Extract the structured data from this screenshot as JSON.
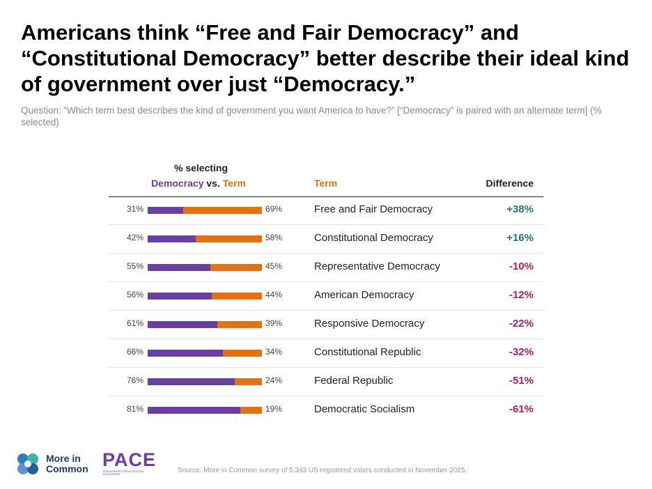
{
  "title": "Americans think “Free and Fair Democracy” and “Constitutional Democracy” better describe their ideal kind of government over just “Democracy.”",
  "subtitle": "Question: “Which term best describes the kind of government you want America to have?” [“Democracy” is paired with an alternate term] (% selected)",
  "header": {
    "selecting": "% selecting",
    "democracy": "Democracy",
    "vs": " vs. ",
    "term": "Term",
    "term_col": "Term",
    "difference": "Difference"
  },
  "colors": {
    "democracy": "#6a3fa5",
    "term": "#e8700a",
    "positive": "#1f7a72",
    "negative": "#c2185b"
  },
  "chart_data": {
    "type": "bar",
    "stacked": true,
    "orientation": "horizontal",
    "categories": [
      "Free and Fair Democracy",
      "Constitutional Democracy",
      "Representative Democracy",
      "American Democracy",
      "Responsive Democracy",
      "Constitutional Republic",
      "Federal Republic",
      "Democratic Socialism"
    ],
    "series": [
      {
        "name": "Democracy",
        "values": [
          31,
          42,
          55,
          56,
          61,
          66,
          76,
          81
        ]
      },
      {
        "name": "Term",
        "values": [
          69,
          58,
          45,
          44,
          39,
          34,
          24,
          19
        ]
      }
    ],
    "difference": [
      "+38%",
      "+16%",
      "-10%",
      "-12%",
      "-22%",
      "-32%",
      "-51%",
      "-61%"
    ],
    "xlim": [
      0,
      100
    ],
    "unit": "%"
  },
  "logos": {
    "mic_line1": "More in",
    "mic_line2": "Common",
    "pace": "PACE",
    "pace_sub": "PHILANTHROPY FOR ACTIVE CIVIC ENGAGEMENT"
  },
  "source": "Source: More in Common survey of 5,393 US registered voters conducted in November 2025."
}
